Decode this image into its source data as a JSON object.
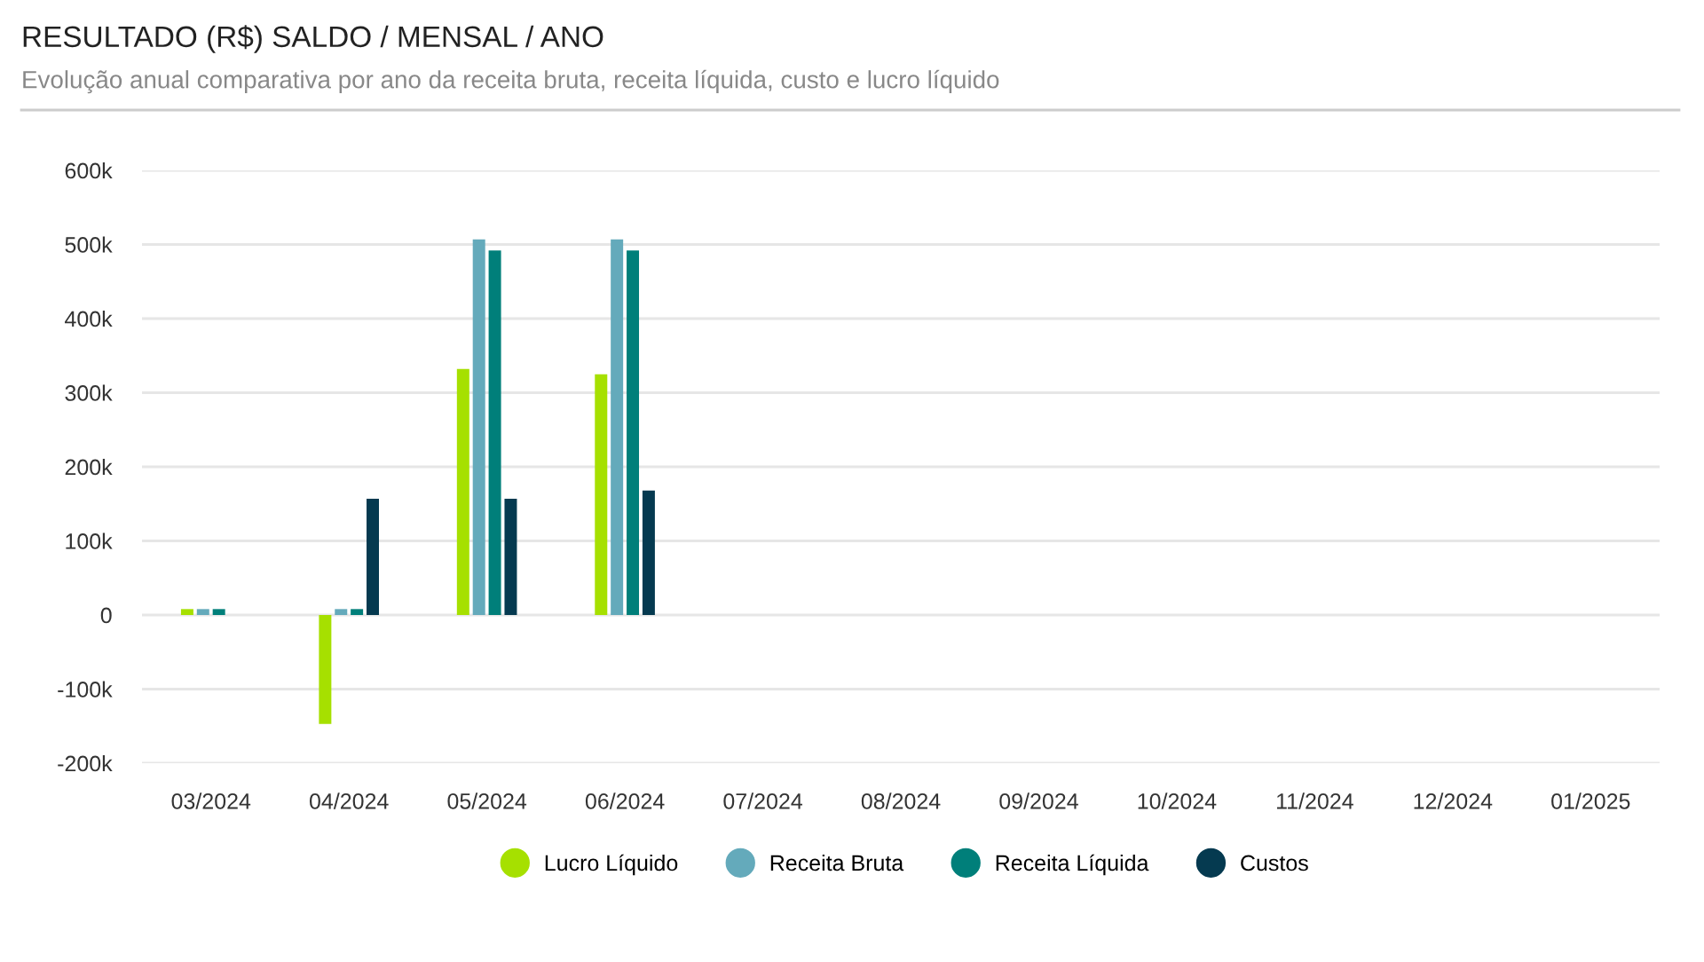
{
  "chart_data": {
    "type": "bar",
    "title": "RESULTADO (R$) SALDO / MENSAL / ANO",
    "subtitle": "Evolução anual comparativa por ano da receita bruta, receita líquida, custo e lucro líquido",
    "categories": [
      "03/2024",
      "04/2024",
      "05/2024",
      "06/2024",
      "07/2024",
      "08/2024",
      "09/2024",
      "10/2024",
      "11/2024",
      "12/2024",
      "01/2025"
    ],
    "series": [
      {
        "name": "Lucro Líquido",
        "color": "#a6e000",
        "values": [
          8000,
          -147000,
          332000,
          325000,
          0,
          0,
          0,
          0,
          0,
          0,
          0
        ]
      },
      {
        "name": "Receita Bruta",
        "color": "#64aabb",
        "values": [
          8000,
          8000,
          507000,
          507000,
          0,
          0,
          0,
          0,
          0,
          0,
          0
        ]
      },
      {
        "name": "Receita Líquida",
        "color": "#007f7a",
        "values": [
          8000,
          8000,
          492000,
          492000,
          0,
          0,
          0,
          0,
          0,
          0,
          0
        ]
      },
      {
        "name": "Custos",
        "color": "#053a50",
        "values": [
          0,
          157000,
          157000,
          168000,
          0,
          0,
          0,
          0,
          0,
          0,
          0
        ]
      }
    ],
    "ylim": [
      -200000,
      600000
    ],
    "yticks": [
      {
        "value": -200000,
        "label": "-200k"
      },
      {
        "value": -100000,
        "label": "-100k"
      },
      0,
      {
        "value": 100000,
        "label": "100k"
      },
      {
        "value": 200000,
        "label": "200k"
      },
      {
        "value": 300000,
        "label": "300k"
      },
      {
        "value": 400000,
        "label": "400k"
      },
      {
        "value": 500000,
        "label": "500k"
      },
      {
        "value": 600000,
        "label": "600k"
      }
    ],
    "grid": "y",
    "legend": "bottom"
  }
}
